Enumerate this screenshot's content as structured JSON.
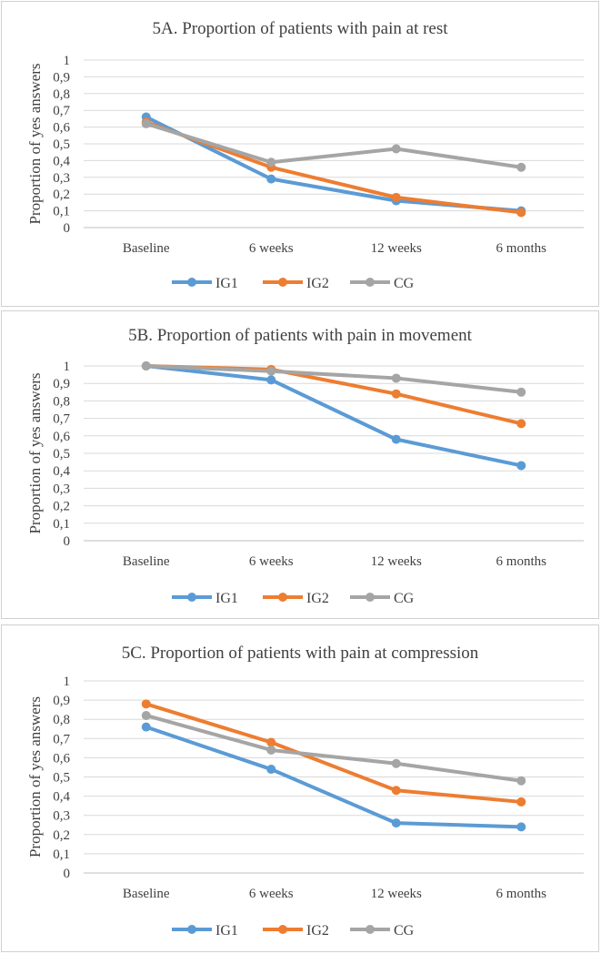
{
  "colors": {
    "IG1": "#5b9bd5",
    "IG2": "#ed7d31",
    "CG": "#a5a5a5"
  },
  "chart_data": [
    {
      "type": "line",
      "title": "5A. Proportion of patients with pain at rest",
      "xlabel": "",
      "ylabel": "Proportion of yes answers",
      "categories": [
        "Baseline",
        "6 weeks",
        "12 weeks",
        "6 months"
      ],
      "ylim": [
        0,
        1
      ],
      "yticks": [
        "0",
        "0,1",
        "0,2",
        "0,3",
        "0,4",
        "0,5",
        "0,6",
        "0,7",
        "0,8",
        "0,9",
        "1"
      ],
      "legend": "bottom",
      "series": [
        {
          "name": "IG1",
          "values": [
            0.66,
            0.29,
            0.16,
            0.1
          ]
        },
        {
          "name": "IG2",
          "values": [
            0.63,
            0.36,
            0.18,
            0.09
          ]
        },
        {
          "name": "CG",
          "values": [
            0.62,
            0.39,
            0.47,
            0.36
          ]
        }
      ]
    },
    {
      "type": "line",
      "title": "5B. Proportion of patients with pain in movement",
      "xlabel": "",
      "ylabel": "Proportion of yes answers",
      "categories": [
        "Baseline",
        "6 weeks",
        "12 weeks",
        "6 months"
      ],
      "ylim": [
        0,
        1
      ],
      "yticks": [
        "0",
        "0,1",
        "0,2",
        "0,3",
        "0,4",
        "0,5",
        "0,6",
        "0,7",
        "0,8",
        "0,9",
        "1"
      ],
      "legend": "bottom",
      "series": [
        {
          "name": "IG1",
          "values": [
            1.0,
            0.92,
            0.58,
            0.43
          ]
        },
        {
          "name": "IG2",
          "values": [
            1.0,
            0.98,
            0.84,
            0.67
          ]
        },
        {
          "name": "CG",
          "values": [
            1.0,
            0.97,
            0.93,
            0.85
          ]
        }
      ]
    },
    {
      "type": "line",
      "title": "5C. Proportion of patients with pain at compression",
      "xlabel": "",
      "ylabel": "Proportion of yes answers",
      "categories": [
        "Baseline",
        "6 weeks",
        "12 weeks",
        "6 months"
      ],
      "ylim": [
        0,
        1
      ],
      "yticks": [
        "0",
        "0,1",
        "0,2",
        "0,3",
        "0,4",
        "0,5",
        "0,6",
        "0,7",
        "0,8",
        "0,9",
        "1"
      ],
      "legend": "bottom",
      "series": [
        {
          "name": "IG1",
          "values": [
            0.76,
            0.54,
            0.26,
            0.24
          ]
        },
        {
          "name": "IG2",
          "values": [
            0.88,
            0.68,
            0.43,
            0.37
          ]
        },
        {
          "name": "CG",
          "values": [
            0.82,
            0.64,
            0.57,
            0.48
          ]
        }
      ]
    }
  ]
}
